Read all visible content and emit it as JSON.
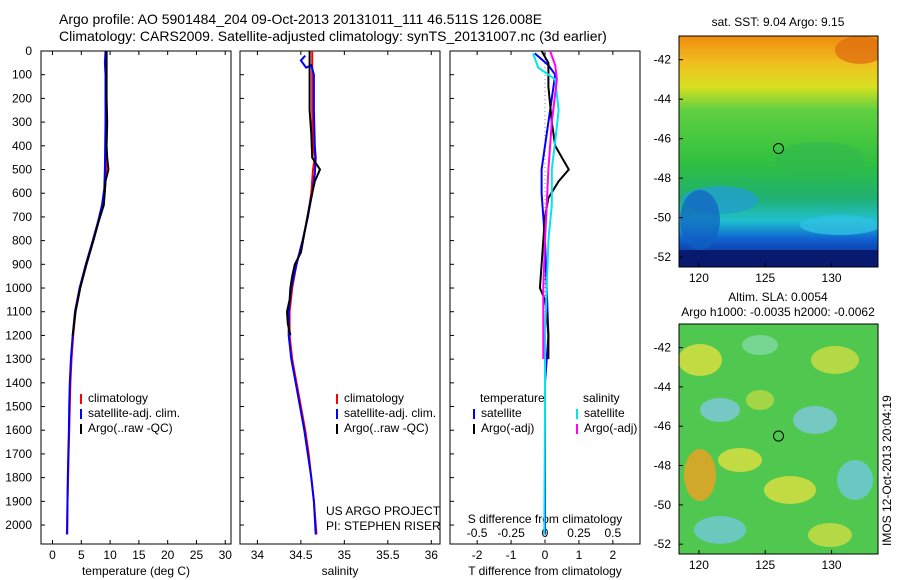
{
  "header": {
    "line1": "Argo profile: AO 5901484_204 09-Oct-2013 20131011_111 46.511S 126.008E",
    "line2": "Climatology: CARS2009. Satellite-adjusted climatology: synTS_20131007.nc (3d earlier)"
  },
  "footer_vertical": "IMOS 12-Oct-2013 20:04:19",
  "colors": {
    "climatology": "#ff0000",
    "satellite": "#0000ff",
    "argo": "#000000",
    "salinity_sat": "#00e5ee",
    "salinity_argo": "#ff00ff"
  },
  "chart_data": [
    {
      "id": "temperature",
      "type": "line",
      "xlabel": "temperature (deg C)",
      "ylabel": "",
      "xlim": [
        -2,
        31
      ],
      "ylim": [
        2080,
        0
      ],
      "x_ticks": [
        "0",
        "5",
        "10",
        "15",
        "20",
        "25",
        "30"
      ],
      "y_ticks": [
        "0",
        "100",
        "200",
        "300",
        "400",
        "500",
        "600",
        "700",
        "800",
        "900",
        "1000",
        "1100",
        "1200",
        "1300",
        "1400",
        "1500",
        "1600",
        "1700",
        "1800",
        "1900",
        "2000"
      ],
      "legend": [
        "climatology",
        "satellite-adj. clim.",
        "Argo(..raw -QC)"
      ],
      "series": [
        {
          "name": "climatology",
          "color": "#ff0000",
          "points": [
            [
              9.3,
              0
            ],
            [
              9.3,
              100
            ],
            [
              9.3,
              300
            ],
            [
              9.3,
              500
            ],
            [
              9.2,
              550
            ],
            [
              9.0,
              620
            ],
            [
              8.2,
              700
            ],
            [
              7.0,
              800
            ],
            [
              5.8,
              900
            ],
            [
              4.8,
              1000
            ],
            [
              4.0,
              1100
            ],
            [
              3.6,
              1200
            ],
            [
              3.3,
              1300
            ],
            [
              3.1,
              1400
            ],
            [
              3.0,
              1500
            ],
            [
              2.9,
              1600
            ],
            [
              2.8,
              1700
            ],
            [
              2.7,
              1800
            ],
            [
              2.6,
              1900
            ],
            [
              2.5,
              2040
            ]
          ]
        },
        {
          "name": "satellite-adj. clim.",
          "color": "#0000ff",
          "points": [
            [
              9.2,
              0
            ],
            [
              9.1,
              50
            ],
            [
              9.2,
              100
            ],
            [
              9.2,
              300
            ],
            [
              9.1,
              500
            ],
            [
              9.0,
              580
            ],
            [
              8.6,
              650
            ],
            [
              7.9,
              720
            ],
            [
              7.0,
              800
            ],
            [
              5.8,
              900
            ],
            [
              4.7,
              1000
            ],
            [
              3.9,
              1100
            ],
            [
              3.5,
              1200
            ],
            [
              3.2,
              1300
            ],
            [
              3.0,
              1400
            ],
            [
              2.9,
              1500
            ],
            [
              2.85,
              1600
            ],
            [
              2.75,
              1700
            ],
            [
              2.65,
              1800
            ],
            [
              2.6,
              1900
            ],
            [
              2.55,
              2040
            ]
          ]
        },
        {
          "name": "Argo(..raw -QC)",
          "color": "#000000",
          "points": [
            [
              9.4,
              0
            ],
            [
              9.4,
              50
            ],
            [
              9.4,
              100
            ],
            [
              9.4,
              200
            ],
            [
              9.5,
              300
            ],
            [
              9.4,
              400
            ],
            [
              9.5,
              450
            ],
            [
              9.7,
              500
            ],
            [
              9.2,
              550
            ],
            [
              8.9,
              650
            ],
            [
              8.0,
              720
            ],
            [
              7.1,
              800
            ],
            [
              5.9,
              900
            ],
            [
              4.8,
              1000
            ],
            [
              4.0,
              1100
            ],
            [
              3.5,
              1200
            ]
          ]
        }
      ]
    },
    {
      "id": "salinity",
      "type": "line",
      "xlabel": "salinity",
      "xlim": [
        33.8,
        36.1
      ],
      "ylim": [
        2080,
        0
      ],
      "x_ticks": [
        "34",
        "34.5",
        "35",
        "35.5",
        "36"
      ],
      "legend": [
        "climatology",
        "satellite-adj. clim.",
        "Argo(..raw -QC)"
      ],
      "annotation": [
        "US ARGO PROJECT",
        "PI: STEPHEN RISER"
      ],
      "series": [
        {
          "name": "climatology",
          "color": "#ff0000",
          "points": [
            [
              34.63,
              0
            ],
            [
              34.63,
              100
            ],
            [
              34.63,
              250
            ],
            [
              34.64,
              400
            ],
            [
              34.66,
              450
            ],
            [
              34.64,
              500
            ],
            [
              34.62,
              600
            ],
            [
              34.58,
              700
            ],
            [
              34.52,
              800
            ],
            [
              34.45,
              900
            ],
            [
              34.4,
              1000
            ],
            [
              34.37,
              1100
            ],
            [
              34.37,
              1200
            ],
            [
              34.4,
              1300
            ],
            [
              34.45,
              1400
            ],
            [
              34.5,
              1500
            ],
            [
              34.55,
              1600
            ],
            [
              34.59,
              1700
            ],
            [
              34.62,
              1800
            ],
            [
              34.65,
              1900
            ],
            [
              34.68,
              2040
            ]
          ]
        },
        {
          "name": "satellite-adj. clim.",
          "color": "#0000ff",
          "points": [
            [
              34.55,
              20
            ],
            [
              34.5,
              40
            ],
            [
              34.56,
              70
            ],
            [
              34.62,
              60
            ],
            [
              34.65,
              100
            ],
            [
              34.65,
              250
            ],
            [
              34.66,
              400
            ],
            [
              34.67,
              450
            ],
            [
              34.66,
              520
            ],
            [
              34.63,
              600
            ],
            [
              34.58,
              700
            ],
            [
              34.52,
              800
            ],
            [
              34.45,
              900
            ],
            [
              34.39,
              1000
            ],
            [
              34.36,
              1100
            ],
            [
              34.36,
              1200
            ],
            [
              34.39,
              1300
            ],
            [
              34.44,
              1400
            ],
            [
              34.49,
              1500
            ],
            [
              34.54,
              1600
            ],
            [
              34.58,
              1700
            ],
            [
              34.62,
              1800
            ],
            [
              34.65,
              1900
            ],
            [
              34.67,
              2040
            ]
          ]
        },
        {
          "name": "Argo(..raw -QC)",
          "color": "#000000",
          "points": [
            [
              34.6,
              0
            ],
            [
              34.6,
              100
            ],
            [
              34.6,
              250
            ],
            [
              34.62,
              350
            ],
            [
              34.63,
              450
            ],
            [
              34.72,
              500
            ],
            [
              34.66,
              550
            ],
            [
              34.6,
              650
            ],
            [
              34.55,
              750
            ],
            [
              34.5,
              850
            ],
            [
              34.43,
              900
            ],
            [
              34.4,
              950
            ],
            [
              34.38,
              1000
            ],
            [
              34.37,
              1050
            ],
            [
              34.34,
              1100
            ],
            [
              34.35,
              1150
            ],
            [
              34.38,
              1200
            ]
          ]
        }
      ]
    },
    {
      "id": "difference",
      "type": "line",
      "xlabel": "T difference from climatology",
      "xlabel_top": "S difference from climatology",
      "xlim": [
        -2.8,
        2.8
      ],
      "ylim": [
        2080,
        0
      ],
      "x_ticks": [
        "-2",
        "-1",
        "0",
        "1",
        "2"
      ],
      "x_ticks_top": [
        "-0.5",
        "-0.25",
        "0",
        "0.25",
        "0.5"
      ],
      "legend_temperature": {
        "title": "temperature",
        "items": [
          "satellite",
          "Argo(-adj)"
        ]
      },
      "legend_salinity": {
        "title": "salinity",
        "items": [
          "satellite",
          "Argo(-adj)"
        ]
      },
      "series": [
        {
          "name": "temperature satellite",
          "color": "#0000ff",
          "points": [
            [
              -0.3,
              10
            ],
            [
              0.1,
              60
            ],
            [
              0.3,
              100
            ],
            [
              0.2,
              200
            ],
            [
              0.0,
              400
            ],
            [
              -0.1,
              500
            ],
            [
              -0.1,
              600
            ],
            [
              0.0,
              800
            ],
            [
              0.05,
              1000
            ],
            [
              0.1,
              1200
            ],
            [
              0.0,
              1400
            ],
            [
              0.0,
              2040
            ]
          ]
        },
        {
          "name": "temperature Argo(-adj)",
          "color": "#000000",
          "points": [
            [
              -0.1,
              0
            ],
            [
              0.1,
              50
            ],
            [
              0.1,
              150
            ],
            [
              0.2,
              300
            ],
            [
              0.3,
              400
            ],
            [
              0.5,
              450
            ],
            [
              0.7,
              500
            ],
            [
              0.4,
              550
            ],
            [
              0.1,
              620
            ],
            [
              0.0,
              700
            ],
            [
              -0.05,
              800
            ],
            [
              -0.1,
              900
            ],
            [
              -0.15,
              1000
            ],
            [
              0.0,
              1050
            ],
            [
              0.05,
              1100
            ],
            [
              0.1,
              1200
            ],
            [
              0.1,
              1300
            ]
          ]
        },
        {
          "name": "salinity satellite",
          "color": "#00e5ee",
          "points": [
            [
              -0.35,
              10
            ],
            [
              -0.2,
              70
            ],
            [
              0.3,
              120
            ],
            [
              0.4,
              250
            ],
            [
              0.3,
              380
            ],
            [
              0.2,
              500
            ],
            [
              0.2,
              650
            ],
            [
              0.1,
              800
            ],
            [
              0.05,
              1000
            ],
            [
              0.0,
              1200
            ],
            [
              0.0,
              1500
            ],
            [
              -0.02,
              2040
            ]
          ]
        },
        {
          "name": "salinity Argo(-adj)",
          "color": "#ff00ff",
          "points": [
            [
              0.15,
              0
            ],
            [
              0.3,
              60
            ],
            [
              0.35,
              120
            ],
            [
              0.2,
              300
            ],
            [
              0.1,
              500
            ],
            [
              0.05,
              650
            ],
            [
              0.0,
              800
            ],
            [
              -0.05,
              1000
            ],
            [
              -0.05,
              1150
            ],
            [
              -0.05,
              1300
            ]
          ]
        }
      ]
    },
    {
      "id": "sst-map",
      "type": "heatmap",
      "title": "sat. SST: 9.04 Argo: 9.15",
      "xlim": [
        118.5,
        133.5
      ],
      "ylim": [
        -52.5,
        -40.8
      ],
      "x_ticks": [
        "120",
        "125",
        "130"
      ],
      "y_ticks": [
        "-42",
        "-44",
        "-46",
        "-48",
        "-50",
        "-52"
      ],
      "marker": {
        "lon": 126.0,
        "lat": -46.5
      }
    },
    {
      "id": "sla-map",
      "type": "heatmap",
      "title": "Altim. SLA: 0.0054",
      "subtitle": "Argo h1000: -0.0035 h2000: -0.0062",
      "xlim": [
        118.5,
        133.5
      ],
      "ylim": [
        -52.5,
        -40.8
      ],
      "x_ticks": [
        "120",
        "125",
        "130"
      ],
      "y_ticks": [
        "-42",
        "-44",
        "-46",
        "-48",
        "-50",
        "-52"
      ],
      "marker": {
        "lon": 126.0,
        "lat": -46.5
      }
    }
  ]
}
